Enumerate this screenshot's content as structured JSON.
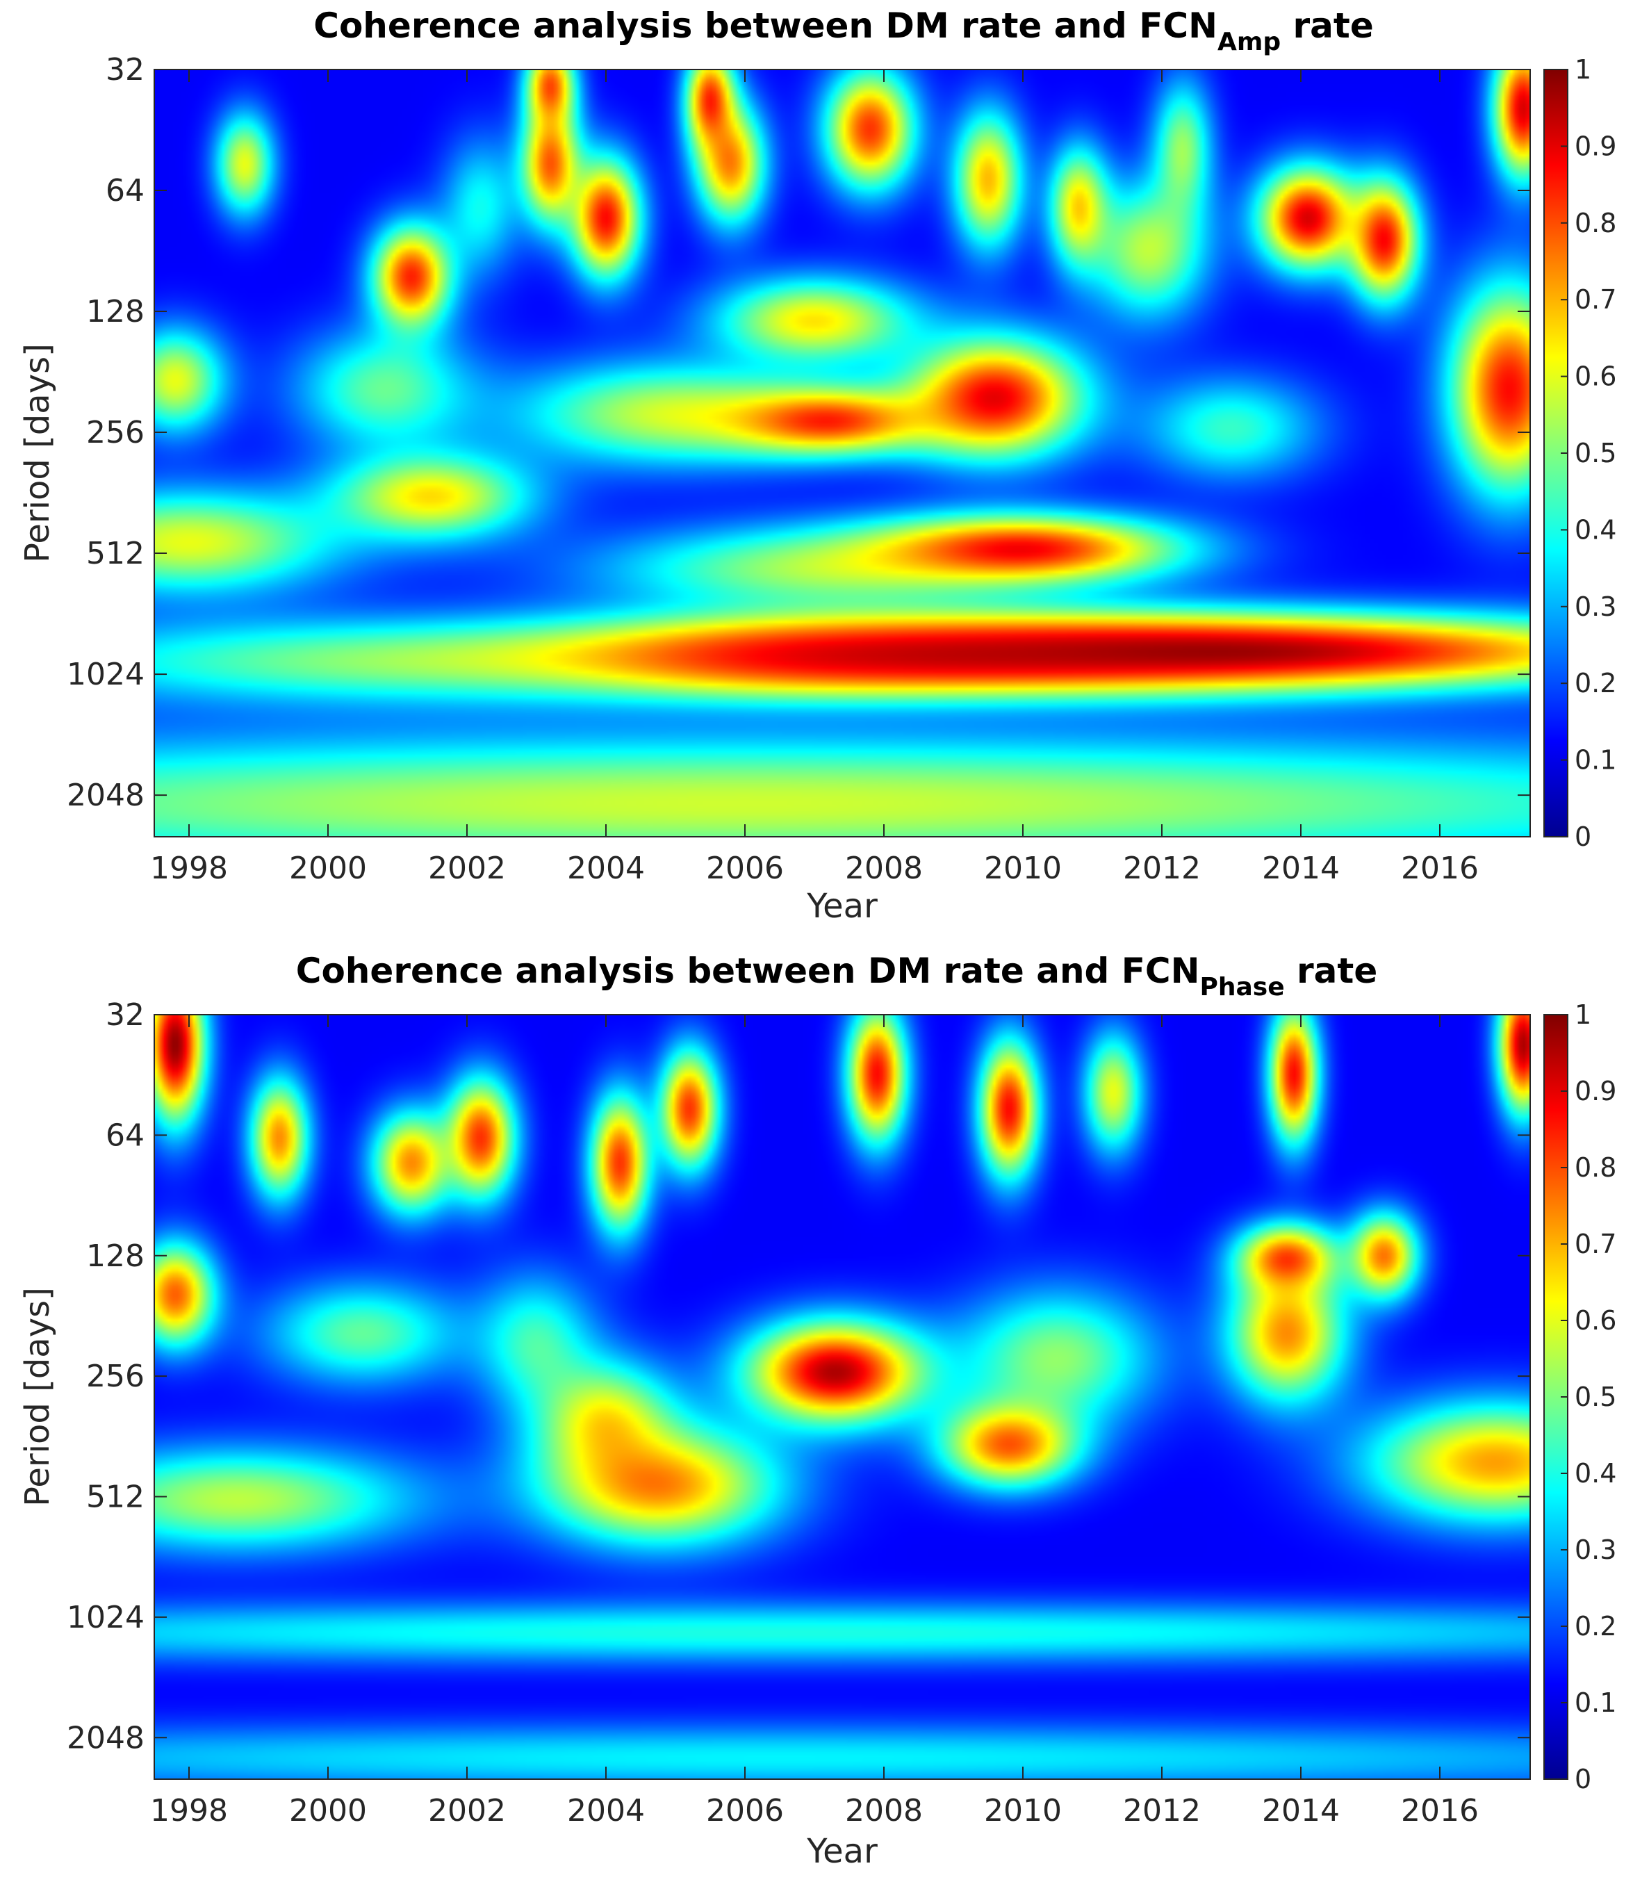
{
  "chart_data": [
    {
      "type": "heatmap",
      "title": "Coherence analysis between DM rate and FCN",
      "title_subscript": "Amp",
      "title_suffix": " rate",
      "xlabel": "Year",
      "ylabel": "Period [days]",
      "xticks": [
        "1998",
        "2000",
        "2002",
        "2004",
        "2006",
        "2008",
        "2010",
        "2012",
        "2014",
        "2016"
      ],
      "yticks": [
        "32",
        "64",
        "128",
        "256",
        "512",
        "1024",
        "2048"
      ],
      "xlim": [
        1997.5,
        2017.3
      ],
      "ylim": [
        32,
        2600
      ],
      "yscale": "log2",
      "colorbar": {
        "min": 0,
        "max": 1,
        "ticks": [
          "0",
          "0.1",
          "0.2",
          "0.3",
          "0.4",
          "0.5",
          "0.6",
          "0.7",
          "0.8",
          "0.9",
          "1"
        ],
        "colormap": "jet"
      },
      "features": [
        {
          "x": 2013.0,
          "period": 900,
          "sx": 4.5,
          "sp": 0.22,
          "v": 0.95
        },
        {
          "x": 2009.0,
          "period": 920,
          "sx": 3.5,
          "sp": 0.22,
          "v": 0.75
        },
        {
          "x": 2006.5,
          "period": 930,
          "sx": 2.0,
          "sp": 0.2,
          "v": 0.45
        },
        {
          "x": 2001.0,
          "period": 950,
          "sx": 4.0,
          "sp": 0.25,
          "v": 0.42
        },
        {
          "x": 2006.0,
          "period": 2150,
          "sx": 12.0,
          "sp": 0.4,
          "v": 0.52
        },
        {
          "x": 2010.0,
          "period": 500,
          "sx": 1.6,
          "sp": 0.2,
          "v": 0.85
        },
        {
          "x": 2007.0,
          "period": 560,
          "sx": 2.2,
          "sp": 0.25,
          "v": 0.45
        },
        {
          "x": 1998.0,
          "period": 480,
          "sx": 1.5,
          "sp": 0.3,
          "v": 0.55
        },
        {
          "x": 2001.5,
          "period": 370,
          "sx": 1.0,
          "sp": 0.25,
          "v": 0.6
        },
        {
          "x": 2007.2,
          "period": 240,
          "sx": 1.1,
          "sp": 0.2,
          "v": 0.8
        },
        {
          "x": 2009.6,
          "period": 210,
          "sx": 0.9,
          "sp": 0.35,
          "v": 0.88
        },
        {
          "x": 2004.8,
          "period": 230,
          "sx": 1.5,
          "sp": 0.3,
          "v": 0.5
        },
        {
          "x": 2007.0,
          "period": 135,
          "sx": 1.0,
          "sp": 0.25,
          "v": 0.6
        },
        {
          "x": 2017.0,
          "period": 200,
          "sx": 0.6,
          "sp": 0.6,
          "v": 0.85
        },
        {
          "x": 1997.8,
          "period": 190,
          "sx": 0.5,
          "sp": 0.3,
          "v": 0.55
        },
        {
          "x": 2000.8,
          "period": 200,
          "sx": 0.9,
          "sp": 0.35,
          "v": 0.4
        },
        {
          "x": 2013.0,
          "period": 250,
          "sx": 0.9,
          "sp": 0.3,
          "v": 0.35
        },
        {
          "x": 2001.2,
          "period": 105,
          "sx": 0.4,
          "sp": 0.3,
          "v": 0.82
        },
        {
          "x": 2004.0,
          "period": 75,
          "sx": 0.35,
          "sp": 0.35,
          "v": 0.85
        },
        {
          "x": 2003.2,
          "period": 55,
          "sx": 0.3,
          "sp": 0.35,
          "v": 0.75
        },
        {
          "x": 2005.8,
          "period": 55,
          "sx": 0.35,
          "sp": 0.35,
          "v": 0.7
        },
        {
          "x": 2007.8,
          "period": 45,
          "sx": 0.45,
          "sp": 0.35,
          "v": 0.8
        },
        {
          "x": 2009.5,
          "period": 60,
          "sx": 0.35,
          "sp": 0.4,
          "v": 0.65
        },
        {
          "x": 2014.1,
          "period": 75,
          "sx": 0.5,
          "sp": 0.3,
          "v": 0.9
        },
        {
          "x": 2015.2,
          "period": 85,
          "sx": 0.35,
          "sp": 0.35,
          "v": 0.85
        },
        {
          "x": 2017.2,
          "period": 40,
          "sx": 0.3,
          "sp": 0.4,
          "v": 0.9
        },
        {
          "x": 1998.8,
          "period": 55,
          "sx": 0.3,
          "sp": 0.3,
          "v": 0.55
        },
        {
          "x": 2010.8,
          "period": 70,
          "sx": 0.3,
          "sp": 0.35,
          "v": 0.6
        },
        {
          "x": 2012.3,
          "period": 50,
          "sx": 0.3,
          "sp": 0.4,
          "v": 0.45
        },
        {
          "x": 2005.5,
          "period": 38,
          "sx": 0.25,
          "sp": 0.3,
          "v": 0.8
        },
        {
          "x": 2003.2,
          "period": 35,
          "sx": 0.25,
          "sp": 0.25,
          "v": 0.75
        },
        {
          "x": 2002.2,
          "period": 70,
          "sx": 0.4,
          "sp": 0.4,
          "v": 0.3
        },
        {
          "x": 2011.8,
          "period": 90,
          "sx": 0.6,
          "sp": 0.4,
          "v": 0.5
        }
      ]
    },
    {
      "type": "heatmap",
      "title": "Coherence analysis between DM rate and FCN",
      "title_subscript": "Phase",
      "title_suffix": " rate",
      "xlabel": "Year",
      "ylabel": "Period [days]",
      "xticks": [
        "1998",
        "2000",
        "2002",
        "2004",
        "2006",
        "2008",
        "2010",
        "2012",
        "2014",
        "2016"
      ],
      "yticks": [
        "32",
        "64",
        "128",
        "256",
        "512",
        "1024",
        "2048"
      ],
      "xlim": [
        1997.5,
        2017.3
      ],
      "ylim": [
        32,
        2600
      ],
      "yscale": "log2",
      "colorbar": {
        "min": 0,
        "max": 1,
        "ticks": [
          "0",
          "0.1",
          "0.2",
          "0.3",
          "0.4",
          "0.5",
          "0.6",
          "0.7",
          "0.8",
          "0.9",
          "1"
        ],
        "colormap": "jet"
      },
      "features": [
        {
          "x": 2007.3,
          "period": 250,
          "sx": 0.9,
          "sp": 0.3,
          "v": 0.95
        },
        {
          "x": 2004.8,
          "period": 480,
          "sx": 1.2,
          "sp": 0.35,
          "v": 0.7
        },
        {
          "x": 2004.0,
          "period": 330,
          "sx": 0.7,
          "sp": 0.35,
          "v": 0.55
        },
        {
          "x": 2009.8,
          "period": 380,
          "sx": 0.7,
          "sp": 0.25,
          "v": 0.75
        },
        {
          "x": 2013.8,
          "period": 200,
          "sx": 0.6,
          "sp": 0.4,
          "v": 0.7
        },
        {
          "x": 2013.8,
          "period": 130,
          "sx": 0.5,
          "sp": 0.2,
          "v": 0.75
        },
        {
          "x": 2015.2,
          "period": 128,
          "sx": 0.35,
          "sp": 0.25,
          "v": 0.72
        },
        {
          "x": 2016.8,
          "period": 420,
          "sx": 1.3,
          "sp": 0.35,
          "v": 0.68
        },
        {
          "x": 1997.8,
          "period": 160,
          "sx": 0.4,
          "sp": 0.3,
          "v": 0.75
        },
        {
          "x": 1998.7,
          "period": 520,
          "sx": 1.8,
          "sp": 0.3,
          "v": 0.5
        },
        {
          "x": 1997.8,
          "period": 38,
          "sx": 0.3,
          "sp": 0.45,
          "v": 0.98
        },
        {
          "x": 2017.2,
          "period": 38,
          "sx": 0.25,
          "sp": 0.4,
          "v": 0.95
        },
        {
          "x": 2002.2,
          "period": 65,
          "sx": 0.35,
          "sp": 0.35,
          "v": 0.8
        },
        {
          "x": 2001.2,
          "period": 75,
          "sx": 0.4,
          "sp": 0.3,
          "v": 0.7
        },
        {
          "x": 2004.2,
          "period": 75,
          "sx": 0.3,
          "sp": 0.4,
          "v": 0.8
        },
        {
          "x": 2005.2,
          "period": 55,
          "sx": 0.3,
          "sp": 0.35,
          "v": 0.8
        },
        {
          "x": 2007.9,
          "period": 45,
          "sx": 0.3,
          "sp": 0.4,
          "v": 0.85
        },
        {
          "x": 2009.8,
          "period": 55,
          "sx": 0.3,
          "sp": 0.4,
          "v": 0.85
        },
        {
          "x": 2013.9,
          "period": 45,
          "sx": 0.25,
          "sp": 0.4,
          "v": 0.85
        },
        {
          "x": 1999.3,
          "period": 65,
          "sx": 0.3,
          "sp": 0.35,
          "v": 0.7
        },
        {
          "x": 2011.3,
          "period": 50,
          "sx": 0.3,
          "sp": 0.35,
          "v": 0.55
        },
        {
          "x": 2000.5,
          "period": 200,
          "sx": 1.0,
          "sp": 0.3,
          "v": 0.4
        },
        {
          "x": 2010.5,
          "period": 230,
          "sx": 1.0,
          "sp": 0.4,
          "v": 0.45
        },
        {
          "x": 2003.0,
          "period": 210,
          "sx": 0.6,
          "sp": 0.4,
          "v": 0.35
        },
        {
          "x": 2006.5,
          "period": 1120,
          "sx": 12.0,
          "sp": 0.18,
          "v": 0.32
        },
        {
          "x": 2006.5,
          "period": 2300,
          "sx": 12.0,
          "sp": 0.2,
          "v": 0.28
        }
      ]
    }
  ]
}
